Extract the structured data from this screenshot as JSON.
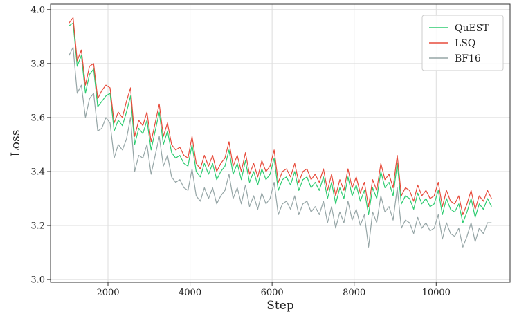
{
  "chart_data": {
    "type": "line",
    "title": "",
    "xlabel": "Step",
    "ylabel": "Loss",
    "xlim": [
      600,
      11800
    ],
    "ylim": [
      2.99,
      4.02
    ],
    "xticks": [
      2000,
      4000,
      6000,
      8000,
      10000
    ],
    "yticks": [
      3.0,
      3.2,
      3.4,
      3.6,
      3.8,
      4.0
    ],
    "xtick_labels": [
      "2000",
      "4000",
      "6000",
      "8000",
      "10000"
    ],
    "ytick_labels": [
      "3.0",
      "3.2",
      "3.4",
      "3.6",
      "3.8",
      "4.0"
    ],
    "grid": true,
    "legend_position": "top-right",
    "x": [
      1050,
      1150,
      1250,
      1350,
      1450,
      1550,
      1650,
      1750,
      1850,
      1950,
      2050,
      2150,
      2250,
      2350,
      2450,
      2550,
      2650,
      2750,
      2850,
      2950,
      3050,
      3150,
      3250,
      3350,
      3450,
      3550,
      3650,
      3750,
      3850,
      3950,
      4050,
      4150,
      4250,
      4350,
      4450,
      4550,
      4650,
      4750,
      4850,
      4950,
      5050,
      5150,
      5250,
      5350,
      5450,
      5550,
      5650,
      5750,
      5850,
      5950,
      6050,
      6150,
      6250,
      6350,
      6450,
      6550,
      6650,
      6750,
      6850,
      6950,
      7050,
      7150,
      7250,
      7350,
      7450,
      7550,
      7650,
      7750,
      7850,
      7950,
      8050,
      8150,
      8250,
      8350,
      8450,
      8550,
      8650,
      8750,
      8850,
      8950,
      9050,
      9150,
      9250,
      9350,
      9450,
      9550,
      9650,
      9750,
      9850,
      9950,
      10050,
      10150,
      10250,
      10350,
      10450,
      10550,
      10650,
      10750,
      10850,
      10950,
      11050,
      11150,
      11250,
      11350
    ],
    "series": [
      {
        "name": "QuEST",
        "color": "#2ecc71",
        "values": [
          3.94,
          3.95,
          3.79,
          3.83,
          3.69,
          3.76,
          3.78,
          3.64,
          3.66,
          3.68,
          3.69,
          3.55,
          3.59,
          3.57,
          3.62,
          3.68,
          3.5,
          3.56,
          3.54,
          3.59,
          3.48,
          3.55,
          3.62,
          3.5,
          3.55,
          3.47,
          3.45,
          3.46,
          3.43,
          3.42,
          3.5,
          3.4,
          3.38,
          3.43,
          3.39,
          3.43,
          3.37,
          3.4,
          3.42,
          3.48,
          3.39,
          3.43,
          3.37,
          3.44,
          3.36,
          3.4,
          3.35,
          3.41,
          3.37,
          3.39,
          3.45,
          3.33,
          3.37,
          3.38,
          3.35,
          3.4,
          3.33,
          3.37,
          3.38,
          3.34,
          3.36,
          3.33,
          3.38,
          3.3,
          3.36,
          3.28,
          3.34,
          3.3,
          3.38,
          3.31,
          3.35,
          3.29,
          3.33,
          3.24,
          3.34,
          3.3,
          3.4,
          3.34,
          3.36,
          3.31,
          3.43,
          3.28,
          3.31,
          3.3,
          3.26,
          3.32,
          3.28,
          3.3,
          3.27,
          3.28,
          3.33,
          3.24,
          3.3,
          3.26,
          3.25,
          3.28,
          3.21,
          3.25,
          3.3,
          3.23,
          3.28,
          3.26,
          3.3,
          3.27
        ]
      },
      {
        "name": "LSQ",
        "color": "#e74c3c",
        "values": [
          3.95,
          3.97,
          3.81,
          3.85,
          3.72,
          3.79,
          3.8,
          3.67,
          3.7,
          3.72,
          3.71,
          3.58,
          3.62,
          3.6,
          3.66,
          3.71,
          3.53,
          3.59,
          3.57,
          3.62,
          3.51,
          3.58,
          3.65,
          3.53,
          3.58,
          3.5,
          3.48,
          3.49,
          3.46,
          3.45,
          3.53,
          3.43,
          3.41,
          3.46,
          3.42,
          3.46,
          3.4,
          3.43,
          3.45,
          3.51,
          3.42,
          3.46,
          3.4,
          3.47,
          3.39,
          3.43,
          3.38,
          3.44,
          3.4,
          3.42,
          3.48,
          3.36,
          3.4,
          3.41,
          3.38,
          3.43,
          3.36,
          3.4,
          3.41,
          3.37,
          3.39,
          3.36,
          3.41,
          3.33,
          3.39,
          3.31,
          3.37,
          3.33,
          3.41,
          3.34,
          3.38,
          3.32,
          3.36,
          3.27,
          3.37,
          3.33,
          3.43,
          3.37,
          3.39,
          3.34,
          3.46,
          3.31,
          3.34,
          3.33,
          3.29,
          3.35,
          3.31,
          3.33,
          3.3,
          3.31,
          3.36,
          3.27,
          3.33,
          3.29,
          3.28,
          3.31,
          3.24,
          3.28,
          3.33,
          3.26,
          3.31,
          3.29,
          3.33,
          3.3
        ]
      },
      {
        "name": "BF16",
        "color": "#95a5a6",
        "values": [
          3.83,
          3.86,
          3.69,
          3.72,
          3.6,
          3.67,
          3.69,
          3.55,
          3.56,
          3.6,
          3.58,
          3.45,
          3.5,
          3.48,
          3.52,
          3.6,
          3.4,
          3.46,
          3.45,
          3.5,
          3.39,
          3.46,
          3.53,
          3.42,
          3.46,
          3.38,
          3.36,
          3.37,
          3.34,
          3.33,
          3.41,
          3.31,
          3.29,
          3.34,
          3.3,
          3.34,
          3.28,
          3.31,
          3.33,
          3.39,
          3.3,
          3.34,
          3.28,
          3.35,
          3.27,
          3.31,
          3.26,
          3.32,
          3.28,
          3.3,
          3.36,
          3.24,
          3.28,
          3.29,
          3.26,
          3.31,
          3.24,
          3.28,
          3.29,
          3.25,
          3.27,
          3.24,
          3.29,
          3.21,
          3.27,
          3.19,
          3.25,
          3.21,
          3.29,
          3.22,
          3.26,
          3.2,
          3.24,
          3.12,
          3.25,
          3.21,
          3.31,
          3.25,
          3.27,
          3.22,
          3.34,
          3.19,
          3.22,
          3.21,
          3.17,
          3.23,
          3.19,
          3.21,
          3.18,
          3.19,
          3.24,
          3.15,
          3.21,
          3.17,
          3.16,
          3.19,
          3.12,
          3.16,
          3.21,
          3.14,
          3.19,
          3.17,
          3.21,
          3.21
        ]
      }
    ]
  }
}
